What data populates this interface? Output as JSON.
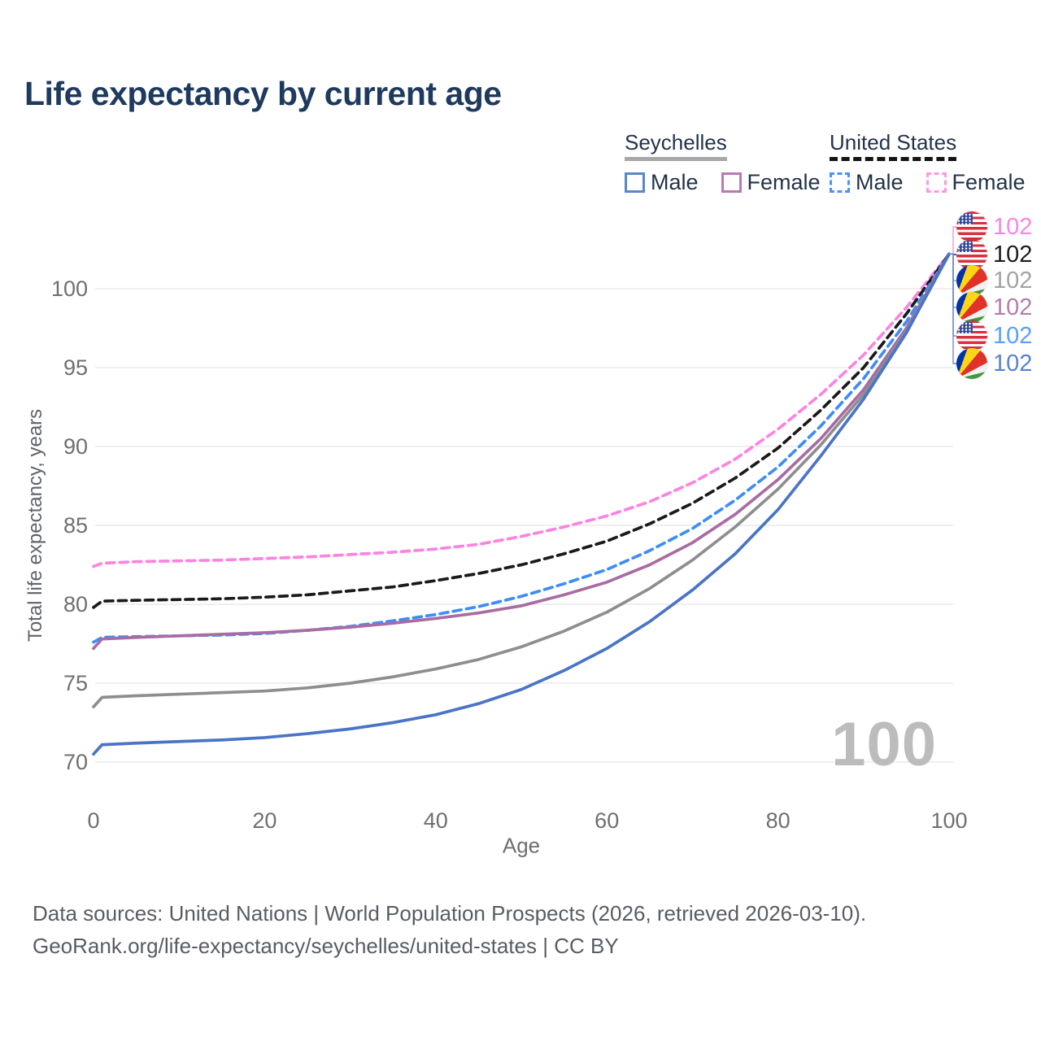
{
  "page": {
    "title": "Life expectancy by current age"
  },
  "legend": {
    "groups": [
      {
        "label": "Seychelles",
        "underline_style": "solid",
        "underline_color": "#a8a8a8",
        "items": [
          {
            "label": "Male",
            "swatch_color": "#5b87c6",
            "swatch_style": "solid"
          },
          {
            "label": "Female",
            "swatch_color": "#b87ab2",
            "swatch_style": "solid"
          }
        ]
      },
      {
        "label": "United States",
        "underline_style": "dashed",
        "underline_color": "#141414",
        "items": [
          {
            "label": "Male",
            "swatch_color": "#4b93f5",
            "swatch_style": "dashed"
          },
          {
            "label": "Female",
            "swatch_color": "#fb9ae4",
            "swatch_style": "dashed"
          }
        ]
      }
    ]
  },
  "chart_data": {
    "type": "line",
    "title": "Life expectancy by current age",
    "xlabel": "Age",
    "ylabel": "Total life expectancy, years",
    "xlim": [
      0,
      100
    ],
    "ylim": [
      70,
      100
    ],
    "x_ticks": [
      0,
      20,
      40,
      60,
      80,
      100
    ],
    "y_ticks": [
      70,
      75,
      80,
      85,
      90,
      95,
      100
    ],
    "grid": "horizontal",
    "legend_position": "top-right",
    "x": [
      0,
      1,
      5,
      10,
      15,
      20,
      25,
      30,
      35,
      40,
      45,
      50,
      55,
      60,
      65,
      70,
      75,
      80,
      85,
      90,
      95,
      100
    ],
    "series": [
      {
        "name": "United States Female",
        "color": "#fb84e1",
        "dash": true,
        "values": [
          82.4,
          82.6,
          82.7,
          82.75,
          82.8,
          82.9,
          83.0,
          83.15,
          83.3,
          83.5,
          83.8,
          84.3,
          84.9,
          85.6,
          86.5,
          87.7,
          89.2,
          91.1,
          93.3,
          95.8,
          98.8,
          102.2
        ]
      },
      {
        "name": "United States (both sexes)",
        "color": "#1a1a1a",
        "dash": true,
        "values": [
          79.8,
          80.2,
          80.25,
          80.3,
          80.35,
          80.45,
          80.6,
          80.85,
          81.1,
          81.5,
          81.95,
          82.5,
          83.2,
          84.0,
          85.1,
          86.4,
          88.0,
          89.9,
          92.3,
          95.0,
          98.4,
          102.2
        ]
      },
      {
        "name": "United States Male",
        "color": "#3e8df7",
        "dash": true,
        "values": [
          77.6,
          77.9,
          77.95,
          78.0,
          78.05,
          78.15,
          78.35,
          78.6,
          78.95,
          79.35,
          79.85,
          80.5,
          81.3,
          82.2,
          83.4,
          84.8,
          86.6,
          88.7,
          91.3,
          94.3,
          97.9,
          102.2
        ]
      },
      {
        "name": "Seychelles Female",
        "color": "#a86ca3",
        "dash": false,
        "values": [
          77.2,
          77.8,
          77.9,
          78.0,
          78.1,
          78.2,
          78.35,
          78.55,
          78.8,
          79.1,
          79.45,
          79.9,
          80.6,
          81.4,
          82.5,
          83.9,
          85.7,
          87.9,
          90.5,
          93.6,
          97.5,
          102.2
        ]
      },
      {
        "name": "Seychelles (both sexes)",
        "color": "#8e8e8e",
        "dash": false,
        "values": [
          73.5,
          74.1,
          74.2,
          74.3,
          74.4,
          74.5,
          74.7,
          75.0,
          75.4,
          75.9,
          76.5,
          77.3,
          78.3,
          79.5,
          81.0,
          82.8,
          84.9,
          87.3,
          90.1,
          93.3,
          97.3,
          102.2
        ]
      },
      {
        "name": "Seychelles Male",
        "color": "#4a74c5",
        "dash": false,
        "values": [
          70.5,
          71.1,
          71.2,
          71.3,
          71.4,
          71.55,
          71.8,
          72.1,
          72.5,
          73.0,
          73.7,
          74.6,
          75.8,
          77.2,
          78.9,
          80.9,
          83.2,
          86.0,
          89.4,
          93.0,
          97.2,
          102.2
        ]
      }
    ]
  },
  "end_labels": [
    {
      "value": "102",
      "flag": "us",
      "color": "#fb84e1",
      "series": "United States Female"
    },
    {
      "value": "102",
      "flag": "us",
      "color": "#1d1d1d",
      "series": "United States (both sexes)"
    },
    {
      "value": "102",
      "flag": "sc",
      "color": "#a3a3a3",
      "series": "Seychelles (both sexes)"
    },
    {
      "value": "102",
      "flag": "sc",
      "color": "#b07fac",
      "series": "Seychelles Female"
    },
    {
      "value": "102",
      "flag": "us",
      "color": "#58a0f8",
      "series": "United States Male"
    },
    {
      "value": "102",
      "flag": "sc",
      "color": "#5b82cf",
      "series": "Seychelles Male"
    }
  ],
  "watermark": {
    "text": "100"
  },
  "footer": {
    "line1": "Data sources: United Nations | World Population Prospects (2026, retrieved 2026-03-10).",
    "line2": "GeoRank.org/life-expectancy/seychelles/united-states | CC BY"
  }
}
